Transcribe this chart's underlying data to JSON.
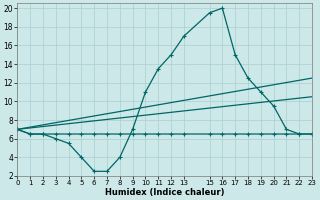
{
  "xlabel": "Humidex (Indice chaleur)",
  "bg_color": "#cde8e8",
  "line_color": "#006666",
  "grid_color": "#aacfcf",
  "xlim": [
    0,
    23
  ],
  "ylim": [
    2,
    20.5
  ],
  "xticks": [
    0,
    1,
    2,
    3,
    4,
    5,
    6,
    7,
    8,
    9,
    10,
    11,
    12,
    13,
    15,
    16,
    17,
    18,
    19,
    20,
    21,
    22,
    23
  ],
  "yticks": [
    2,
    4,
    6,
    8,
    10,
    12,
    14,
    16,
    18,
    20
  ],
  "series_main": {
    "x": [
      0,
      1,
      2,
      3,
      4,
      5,
      6,
      7,
      8,
      9,
      10,
      11,
      12,
      13,
      15,
      16,
      17,
      18,
      19,
      20,
      21,
      22,
      23
    ],
    "y": [
      7,
      6.5,
      6.5,
      6,
      5.5,
      4,
      2.5,
      2.5,
      4,
      7,
      11,
      13.5,
      15,
      17,
      19.5,
      20,
      15,
      12.5,
      11,
      9.5,
      7,
      6.5,
      6.5
    ]
  },
  "series_flat": {
    "x": [
      0,
      1,
      2,
      3,
      4,
      5,
      6,
      7,
      8,
      9,
      10,
      11,
      12,
      13,
      15,
      16,
      17,
      18,
      19,
      20,
      21,
      22,
      23
    ],
    "y": [
      7,
      6.5,
      6.5,
      6.5,
      6.5,
      6.5,
      6.5,
      6.5,
      6.5,
      6.5,
      6.5,
      6.5,
      6.5,
      6.5,
      6.5,
      6.5,
      6.5,
      6.5,
      6.5,
      6.5,
      6.5,
      6.5,
      6.5
    ]
  },
  "series_diag1": {
    "x": [
      0,
      23
    ],
    "y": [
      7,
      10.5
    ]
  },
  "series_diag2": {
    "x": [
      0,
      23
    ],
    "y": [
      7,
      12.5
    ]
  }
}
